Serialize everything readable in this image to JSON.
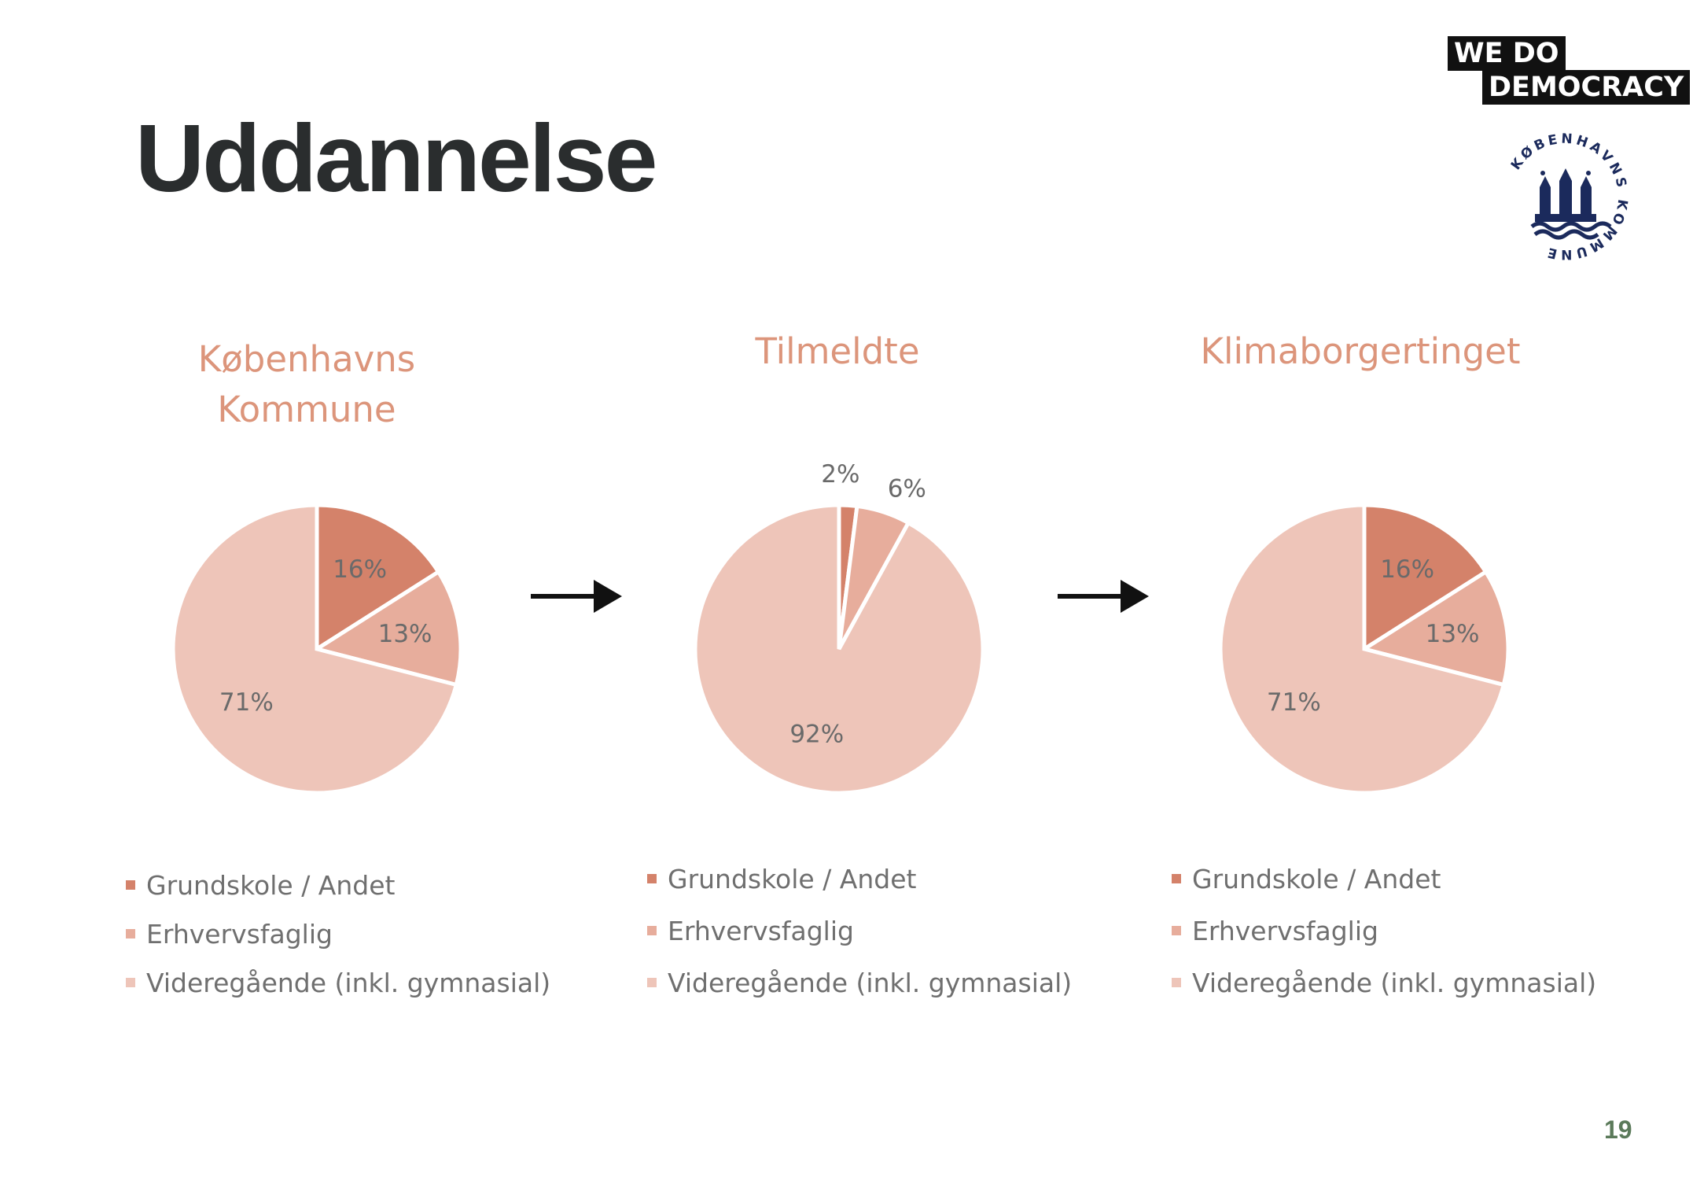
{
  "slide": {
    "title": "Uddannelse",
    "page_number": "19"
  },
  "logos": {
    "wedo_line1": "WE DO",
    "wedo_line2": "DEMOCRACY",
    "kommune_text": "KØBENHAVNS KOMMUNE"
  },
  "colors": {
    "grundskole": "#d4826a",
    "erhvervsfaglig": "#e7ad9c",
    "videregaende": "#eec5b9",
    "title_color": "#dc957b",
    "slice_border": "#ffffff"
  },
  "chart_data": [
    {
      "type": "pie",
      "title_lines": [
        "Københavns",
        "Kommune"
      ],
      "categories": [
        "Grundskole / Andet",
        "Erhvervsfaglig",
        "Videregående (inkl. gymnasial)"
      ],
      "values": [
        16,
        13,
        71
      ],
      "data_labels": [
        "16%",
        "13%",
        "71%"
      ],
      "legend_position": "bottom"
    },
    {
      "type": "pie",
      "title_lines": [
        "Tilmeldte"
      ],
      "categories": [
        "Grundskole / Andet",
        "Erhvervsfaglig",
        "Videregående (inkl. gymnasial)"
      ],
      "values": [
        2,
        6,
        92
      ],
      "data_labels": [
        "2%",
        "6%",
        "92%"
      ],
      "legend_position": "bottom"
    },
    {
      "type": "pie",
      "title_lines": [
        "Klimaborgertinget"
      ],
      "categories": [
        "Grundskole / Andet",
        "Erhvervsfaglig",
        "Videregående (inkl. gymnasial)"
      ],
      "values": [
        16,
        13,
        71
      ],
      "data_labels": [
        "16%",
        "13%",
        "71%"
      ],
      "legend_position": "bottom"
    }
  ]
}
